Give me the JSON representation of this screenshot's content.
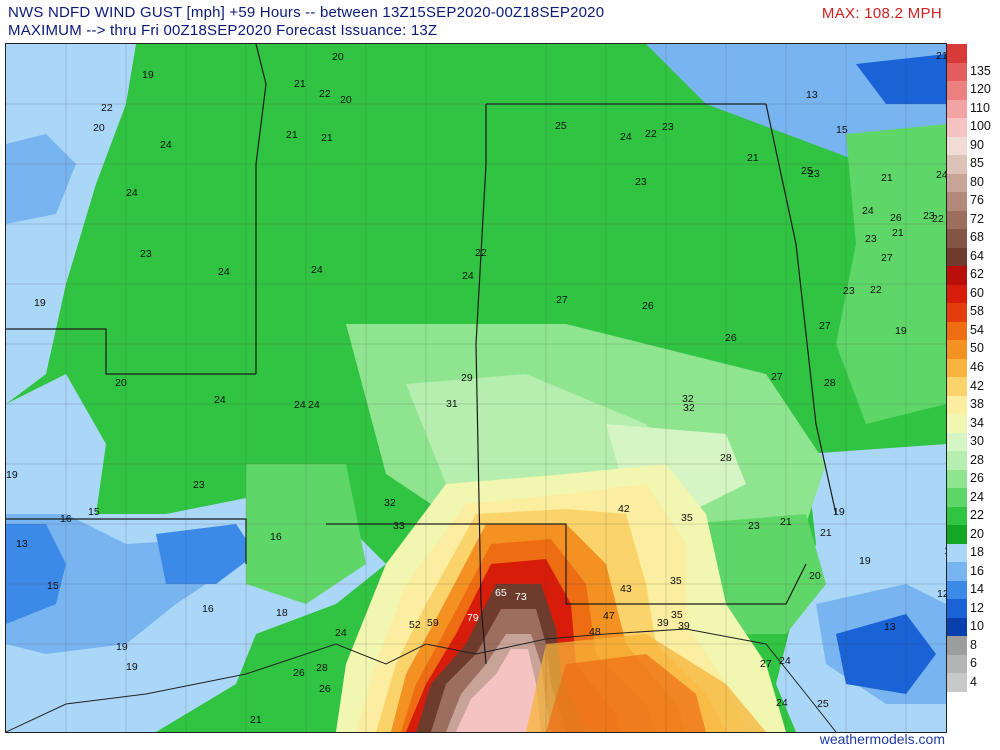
{
  "header": {
    "line1": "NWS NDFD WIND GUST [mph] +59 Hours -- between 13Z15SEP2020-00Z18SEP2020",
    "line2": "MAXIMUM --> thru Fri 00Z18SEP2020   Forecast Issuance: 13Z",
    "max_label": "MAX: 108.2 MPH"
  },
  "legend": [
    {
      "label": "4",
      "color": "#c9c9c9"
    },
    {
      "label": "6",
      "color": "#b4b4b4"
    },
    {
      "label": "8",
      "color": "#9d9d9d"
    },
    {
      "label": "10",
      "color": "#0a3fae"
    },
    {
      "label": "12",
      "color": "#1963d6"
    },
    {
      "label": "14",
      "color": "#3c8ae8"
    },
    {
      "label": "16",
      "color": "#78b4f0"
    },
    {
      "label": "18",
      "color": "#aad6f7"
    },
    {
      "label": "20",
      "color": "#15a626"
    },
    {
      "label": "22",
      "color": "#30c442"
    },
    {
      "label": "24",
      "color": "#5fd768"
    },
    {
      "label": "26",
      "color": "#8fe58f"
    },
    {
      "label": "28",
      "color": "#b5eeae"
    },
    {
      "label": "30",
      "color": "#d6f5c4"
    },
    {
      "label": "34",
      "color": "#f1f6b0"
    },
    {
      "label": "38",
      "color": "#fbeea0"
    },
    {
      "label": "42",
      "color": "#fad36a"
    },
    {
      "label": "46",
      "color": "#f7b43c"
    },
    {
      "label": "50",
      "color": "#f39222"
    },
    {
      "label": "54",
      "color": "#ee6d12"
    },
    {
      "label": "58",
      "color": "#e43c0c"
    },
    {
      "label": "60",
      "color": "#d81c0a"
    },
    {
      "label": "62",
      "color": "#b80f0a"
    },
    {
      "label": "64",
      "color": "#6e3b2d"
    },
    {
      "label": "68",
      "color": "#845445"
    },
    {
      "label": "72",
      "color": "#9b6e5f"
    },
    {
      "label": "76",
      "color": "#b1887a"
    },
    {
      "label": "80",
      "color": "#c8a498"
    },
    {
      "label": "85",
      "color": "#ddc2b8"
    },
    {
      "label": "90",
      "color": "#f0dcd4"
    },
    {
      "label": "100",
      "color": "#f6c3c3"
    },
    {
      "label": "110",
      "color": "#f2a3a3"
    },
    {
      "label": "120",
      "color": "#ec7f7f"
    },
    {
      "label": "135",
      "color": "#e35d5d"
    },
    {
      "label": "",
      "color": "#d83a3a"
    }
  ],
  "point_values": [
    "19",
    "20",
    "22",
    "21",
    "22",
    "20",
    "20",
    "24",
    "21",
    "21",
    "24",
    "23",
    "24",
    "24",
    "22",
    "24",
    "19",
    "20",
    "24",
    "24",
    "24",
    "23",
    "19",
    "16",
    "15",
    "13",
    "15",
    "16",
    "16",
    "18",
    "19",
    "19",
    "21",
    "24",
    "26",
    "26",
    "28",
    "29",
    "31",
    "32",
    "33",
    "52",
    "59",
    "79",
    "65",
    "73",
    "47",
    "48",
    "42",
    "43",
    "35",
    "35",
    "35",
    "39",
    "39",
    "24",
    "27",
    "24",
    "25",
    "25",
    "24",
    "22",
    "23",
    "23",
    "21",
    "25",
    "27",
    "26",
    "26",
    "27",
    "28",
    "32",
    "32",
    "28",
    "23",
    "21",
    "21",
    "20",
    "19",
    "19",
    "13",
    "12",
    "18",
    "21",
    "13",
    "15",
    "23",
    "21",
    "24",
    "22",
    "24",
    "26",
    "23",
    "21",
    "27",
    "23",
    "27",
    "22",
    "23",
    "19"
  ],
  "credit": "weathermodels.com"
}
